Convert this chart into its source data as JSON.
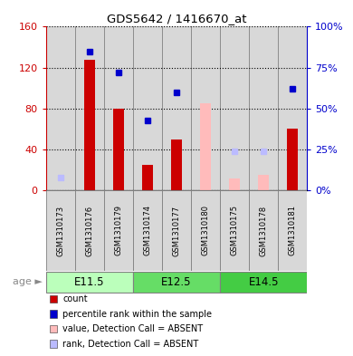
{
  "title": "GDS5642 / 1416670_at",
  "samples": [
    "GSM1310173",
    "GSM1310176",
    "GSM1310179",
    "GSM1310174",
    "GSM1310177",
    "GSM1310180",
    "GSM1310175",
    "GSM1310178",
    "GSM1310181"
  ],
  "groups": [
    {
      "label": "E11.5",
      "color": "#bbffbb",
      "start": 0,
      "end": 2
    },
    {
      "label": "E12.5",
      "color": "#66dd66",
      "start": 3,
      "end": 5
    },
    {
      "label": "E14.5",
      "color": "#44cc44",
      "start": 6,
      "end": 8
    }
  ],
  "count": [
    0,
    128,
    80,
    25,
    50,
    0,
    0,
    0,
    60
  ],
  "count_absent": [
    0,
    0,
    0,
    0,
    0,
    85,
    12,
    15,
    0
  ],
  "percentile": [
    0,
    85,
    72,
    43,
    60,
    0,
    0,
    0,
    62
  ],
  "percentile_absent": [
    8,
    0,
    0,
    0,
    0,
    0,
    24,
    24,
    0
  ],
  "ylim_left": [
    0,
    160
  ],
  "ylim_right": [
    0,
    100
  ],
  "yticks_left": [
    0,
    40,
    80,
    120,
    160
  ],
  "yticks_right": [
    0,
    25,
    50,
    75,
    100
  ],
  "ytick_labels_left": [
    "0",
    "40",
    "80",
    "120",
    "160"
  ],
  "ytick_labels_right": [
    "0%",
    "25%",
    "50%",
    "75%",
    "100%"
  ],
  "left_axis_color": "#cc0000",
  "right_axis_color": "#0000cc",
  "count_color": "#cc0000",
  "percentile_color": "#0000cc",
  "count_absent_color": "#ffbbbb",
  "percentile_absent_color": "#bbbbff",
  "col_bg_color": "#d8d8d8",
  "age_label": "age",
  "legend_items": [
    {
      "color": "#cc0000",
      "label": "count"
    },
    {
      "color": "#0000cc",
      "label": "percentile rank within the sample"
    },
    {
      "color": "#ffbbbb",
      "label": "value, Detection Call = ABSENT"
    },
    {
      "color": "#bbbbff",
      "label": "rank, Detection Call = ABSENT"
    }
  ]
}
